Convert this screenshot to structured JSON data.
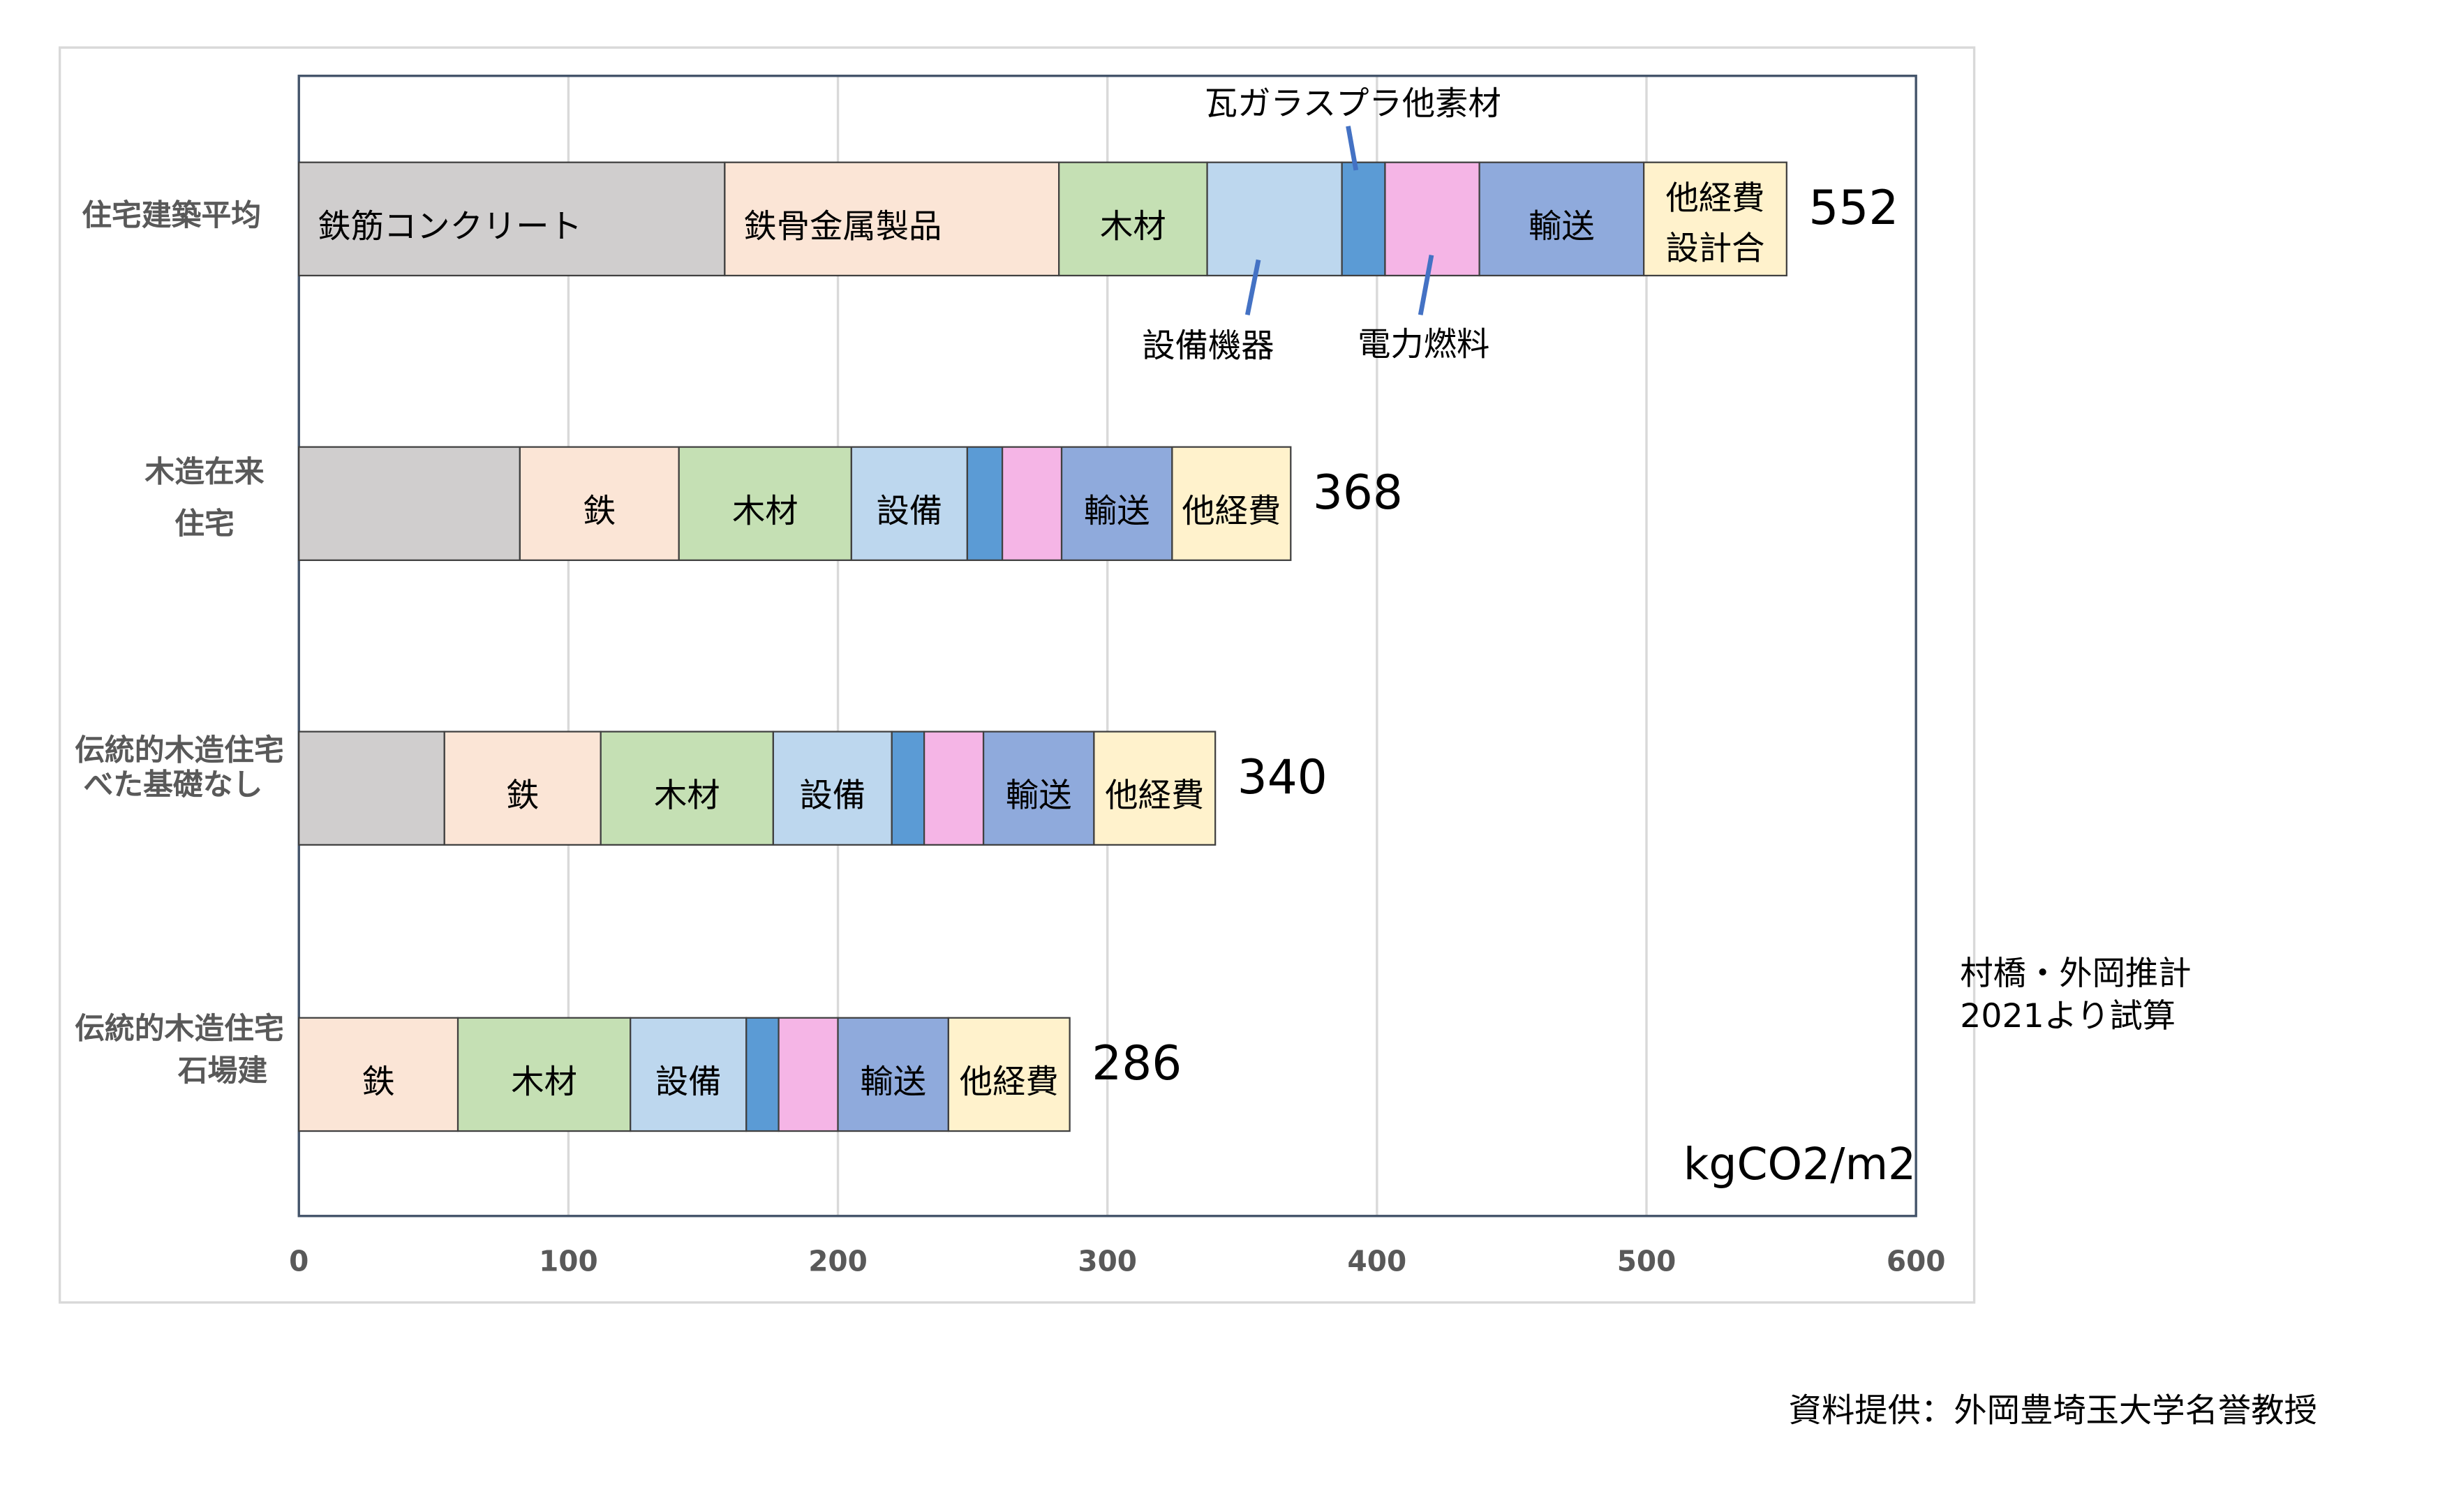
{
  "chart_data": {
    "type": "bar",
    "orientation": "horizontal",
    "stacked": true,
    "categories": [
      [
        "住宅建築平均"
      ],
      [
        "木造在来",
        "住宅"
      ],
      [
        "伝統的木造住宅",
        "べた基礎なし"
      ],
      [
        "伝統的木造住宅",
        "石場建"
      ]
    ],
    "series": [
      {
        "color": "#d0cece",
        "values": [
          158,
          82,
          54,
          null
        ],
        "labels": [
          [
            "鉄筋コンクリート"
          ],
          null,
          null,
          null
        ]
      },
      {
        "color": "#fbe5d6",
        "values": [
          124,
          59,
          58,
          59
        ],
        "labels": [
          [
            "鉄骨金属製品"
          ],
          [
            "鉄"
          ],
          [
            "鉄"
          ],
          [
            "鉄"
          ]
        ]
      },
      {
        "color": "#c5e0b4",
        "values": [
          55,
          64,
          64,
          64
        ],
        "labels": [
          [
            "木材"
          ],
          [
            "木材"
          ],
          [
            "木材"
          ],
          [
            "木材"
          ]
        ]
      },
      {
        "color": "#bdd7ee",
        "values": [
          50,
          43,
          44,
          43
        ],
        "labels": [
          [
            "設備機器"
          ],
          [
            "設備"
          ],
          [
            "設備"
          ],
          [
            "設備"
          ]
        ]
      },
      {
        "color": "#5b9bd5",
        "values": [
          16,
          13,
          12,
          12
        ],
        "labels": [
          [
            "瓦ガラスプラ他素材"
          ],
          null,
          null,
          null
        ]
      },
      {
        "color": "#f5b5e6",
        "values": [
          35,
          22,
          22,
          22
        ],
        "labels": [
          [
            "電力燃料"
          ],
          null,
          null,
          null
        ]
      },
      {
        "color": "#8faadc",
        "values": [
          61,
          41,
          41,
          41
        ],
        "labels": [
          [
            "輸送"
          ],
          [
            "輸送"
          ],
          [
            "輸送"
          ],
          [
            "輸送"
          ]
        ]
      },
      {
        "color": "#fff2cc",
        "values": [
          53,
          44,
          45,
          45
        ],
        "labels": [
          [
            "他経費",
            "設計合"
          ],
          [
            "他経費"
          ],
          [
            "他経費"
          ],
          [
            "他経費"
          ]
        ]
      }
    ],
    "totals": [
      552,
      368,
      340,
      286
    ],
    "xlim": [
      0,
      600
    ],
    "xticks": [
      0,
      100,
      200,
      300,
      400,
      500,
      600
    ],
    "grid": true,
    "unit": "kgCO2/m2",
    "note": [
      "村橋・外岡推計",
      "2021より試算"
    ],
    "source": "資料提供：外岡豊埼玉大学名誉教授"
  }
}
